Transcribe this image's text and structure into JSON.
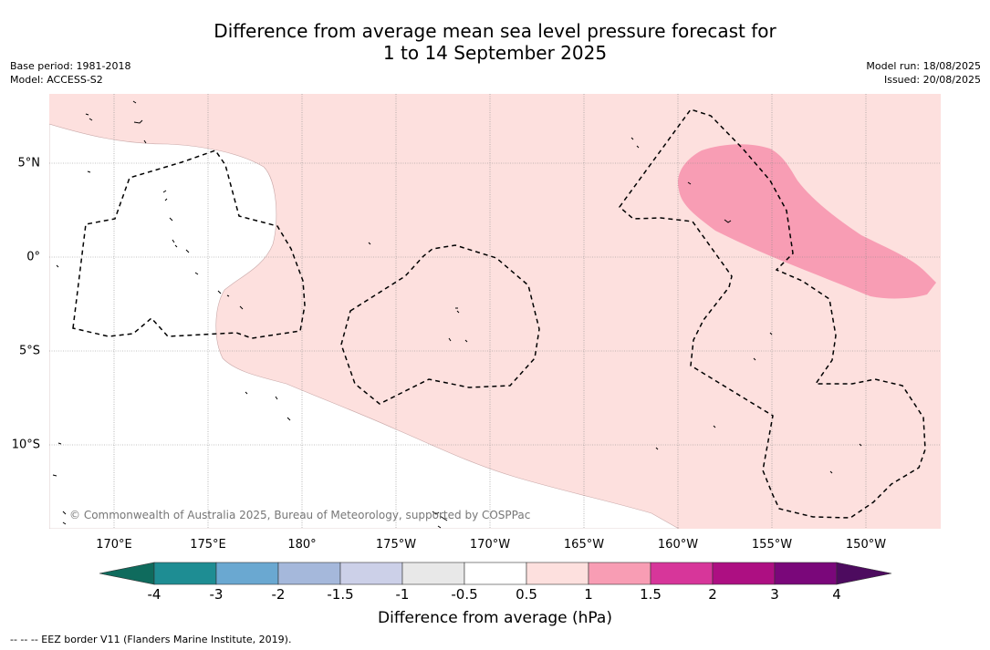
{
  "title": {
    "line1": "Difference from average mean sea level pressure forecast for",
    "line2": "1 to 14 September 2025"
  },
  "meta_left": {
    "base_period": "Base period: 1981-2018",
    "model": "Model: ACCESS-S2"
  },
  "meta_right": {
    "model_run": "Model run: 18/08/2025",
    "issued": "Issued: 20/08/2025"
  },
  "map": {
    "lat_labels": [
      "5°N",
      "0°",
      "5°S",
      "10°S"
    ],
    "lon_labels": [
      "170°E",
      "175°E",
      "180°",
      "175°W",
      "170°W",
      "165°W",
      "160°W",
      "155°W",
      "150°W"
    ],
    "copyright": "© Commonwealth of Australia 2025, Bureau of Meteorology, supported by COSPPac",
    "colors": {
      "land": "#ffffff",
      "ocean_0_5_to_1": "#fde0de",
      "ocean_1_to_1_5": "#f89db4",
      "grid": "#888888"
    }
  },
  "colorbar": {
    "title": "Difference from average (hPa)",
    "labels": [
      "-4",
      "-3",
      "-2",
      "-1.5",
      "-1",
      "-0.5",
      "0.5",
      "1",
      "1.5",
      "2",
      "3",
      "4"
    ],
    "colors": [
      "#0f6b5d",
      "#1e8d93",
      "#6aa8d1",
      "#a5b8db",
      "#ccd0e8",
      "#e8e8e8",
      "#ffffff",
      "#fde0de",
      "#f89db4",
      "#d7369a",
      "#ad0f82",
      "#7a077a",
      "#4d0b5f"
    ]
  },
  "footer": "-- -- -- EEZ border V11 (Flanders Marine Institute, 2019)."
}
